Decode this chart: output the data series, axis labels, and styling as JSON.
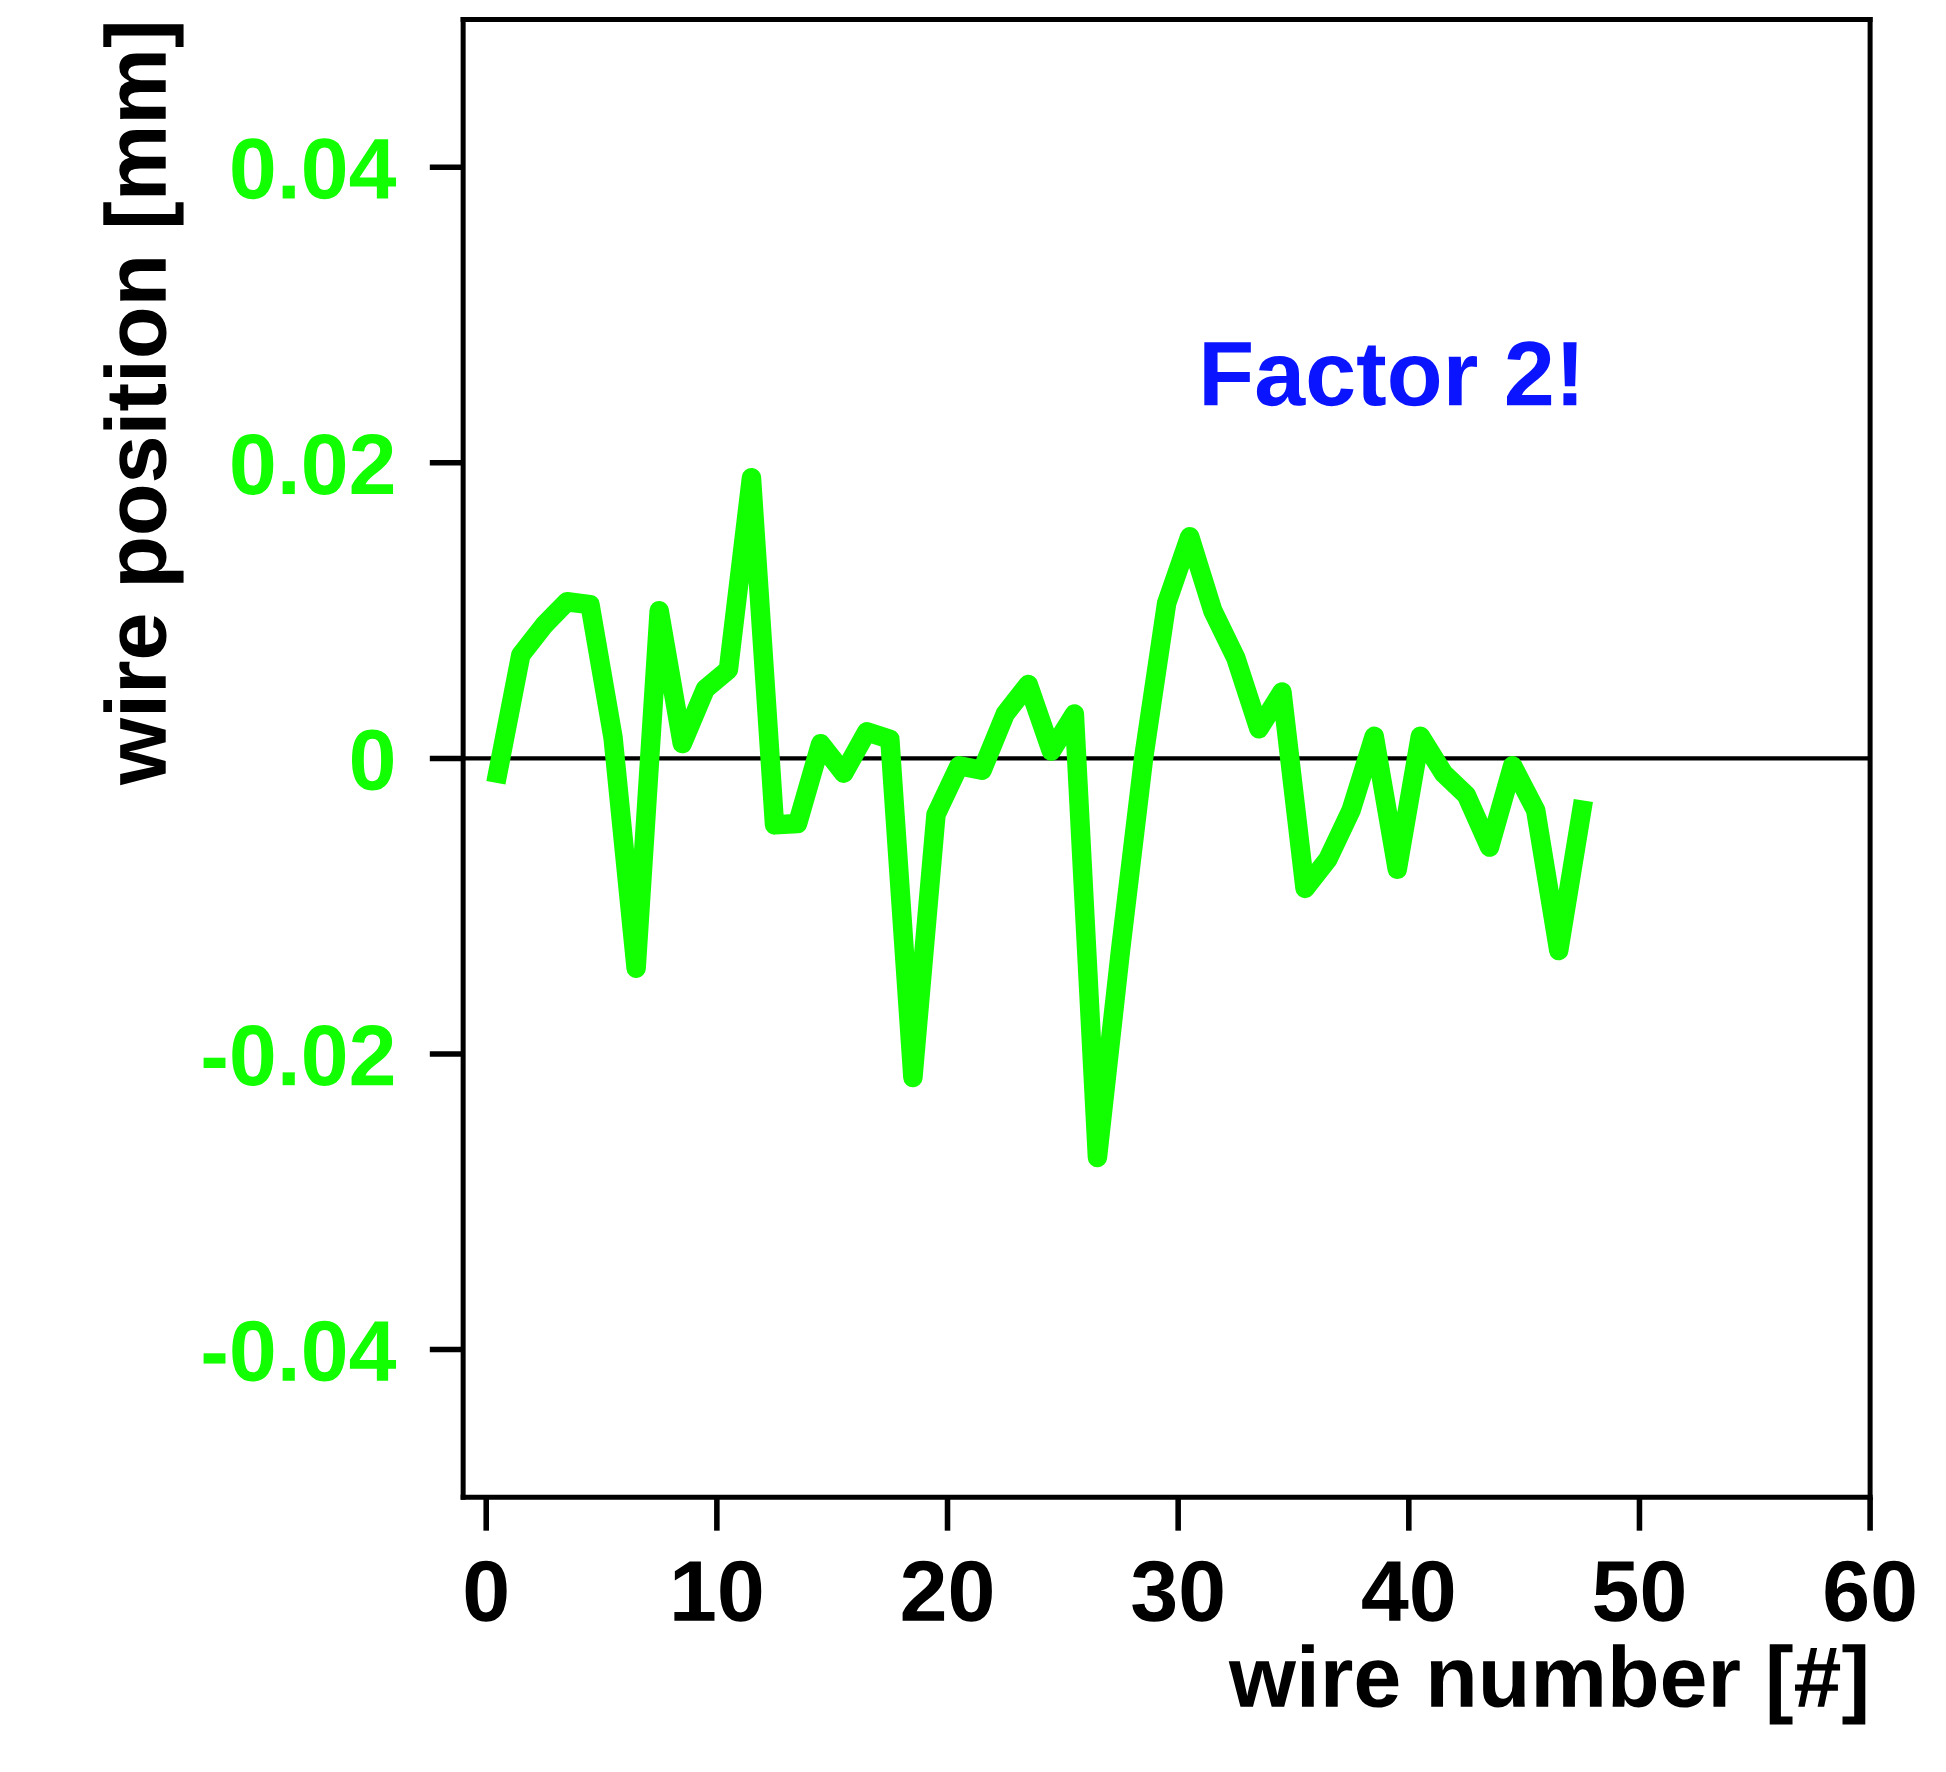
{
  "chart_data": {
    "type": "line",
    "xlabel": "wire number [#]",
    "ylabel": "wire position [mm]",
    "x": [
      0.5,
      1.5,
      2.5,
      3.5,
      4.5,
      5.5,
      6.5,
      7.5,
      8.5,
      9.5,
      10.5,
      11.5,
      12.5,
      13.5,
      14.5,
      15.5,
      16.5,
      17.5,
      18.5,
      19.5,
      20.5,
      21.5,
      22.5,
      23.5,
      24.5,
      25.5,
      26.5,
      27.5,
      28.5,
      29.5,
      30.5,
      31.5,
      32.5,
      33.5,
      34.5,
      35.5,
      36.5,
      37.5,
      38.5,
      39.5,
      40.5,
      41.5,
      42.5,
      43.5,
      44.5,
      45.5,
      46.5,
      47.5
    ],
    "series": [
      {
        "color": "#11ff00",
        "values": [
          -0.001,
          0.007,
          0.009,
          0.0106,
          0.0104,
          0.0014,
          -0.0142,
          0.01,
          0.001,
          0.0047,
          0.006,
          0.019,
          -0.0045,
          -0.0044,
          0.001,
          -0.001,
          0.0018,
          0.0013,
          -0.0216,
          -0.0038,
          -0.0005,
          -0.0008,
          0.003,
          0.005,
          0.0005,
          0.003,
          -0.027,
          -0.013,
          0.0,
          0.0105,
          0.015,
          0.01,
          0.0068,
          0.002,
          0.0045,
          -0.0088,
          -0.0068,
          -0.0035,
          0.0015,
          -0.0075,
          0.0015,
          -0.001,
          -0.0025,
          -0.006,
          -0.0005,
          -0.0035,
          -0.013,
          -0.0035
        ]
      }
    ],
    "xlim": [
      -1,
      60
    ],
    "ylim": [
      -0.05,
      0.05
    ],
    "xticks": [
      0,
      10,
      20,
      30,
      40,
      50,
      60
    ],
    "yticks": [
      -0.04,
      -0.02,
      0,
      0.02,
      0.04
    ],
    "ref_lines": [
      {
        "axis": "y",
        "value": 0,
        "color": "#000000"
      }
    ],
    "annotations": [
      "Factor 2!"
    ],
    "grid": false,
    "legend": false,
    "marker": "none",
    "line_style": "solid"
  }
}
